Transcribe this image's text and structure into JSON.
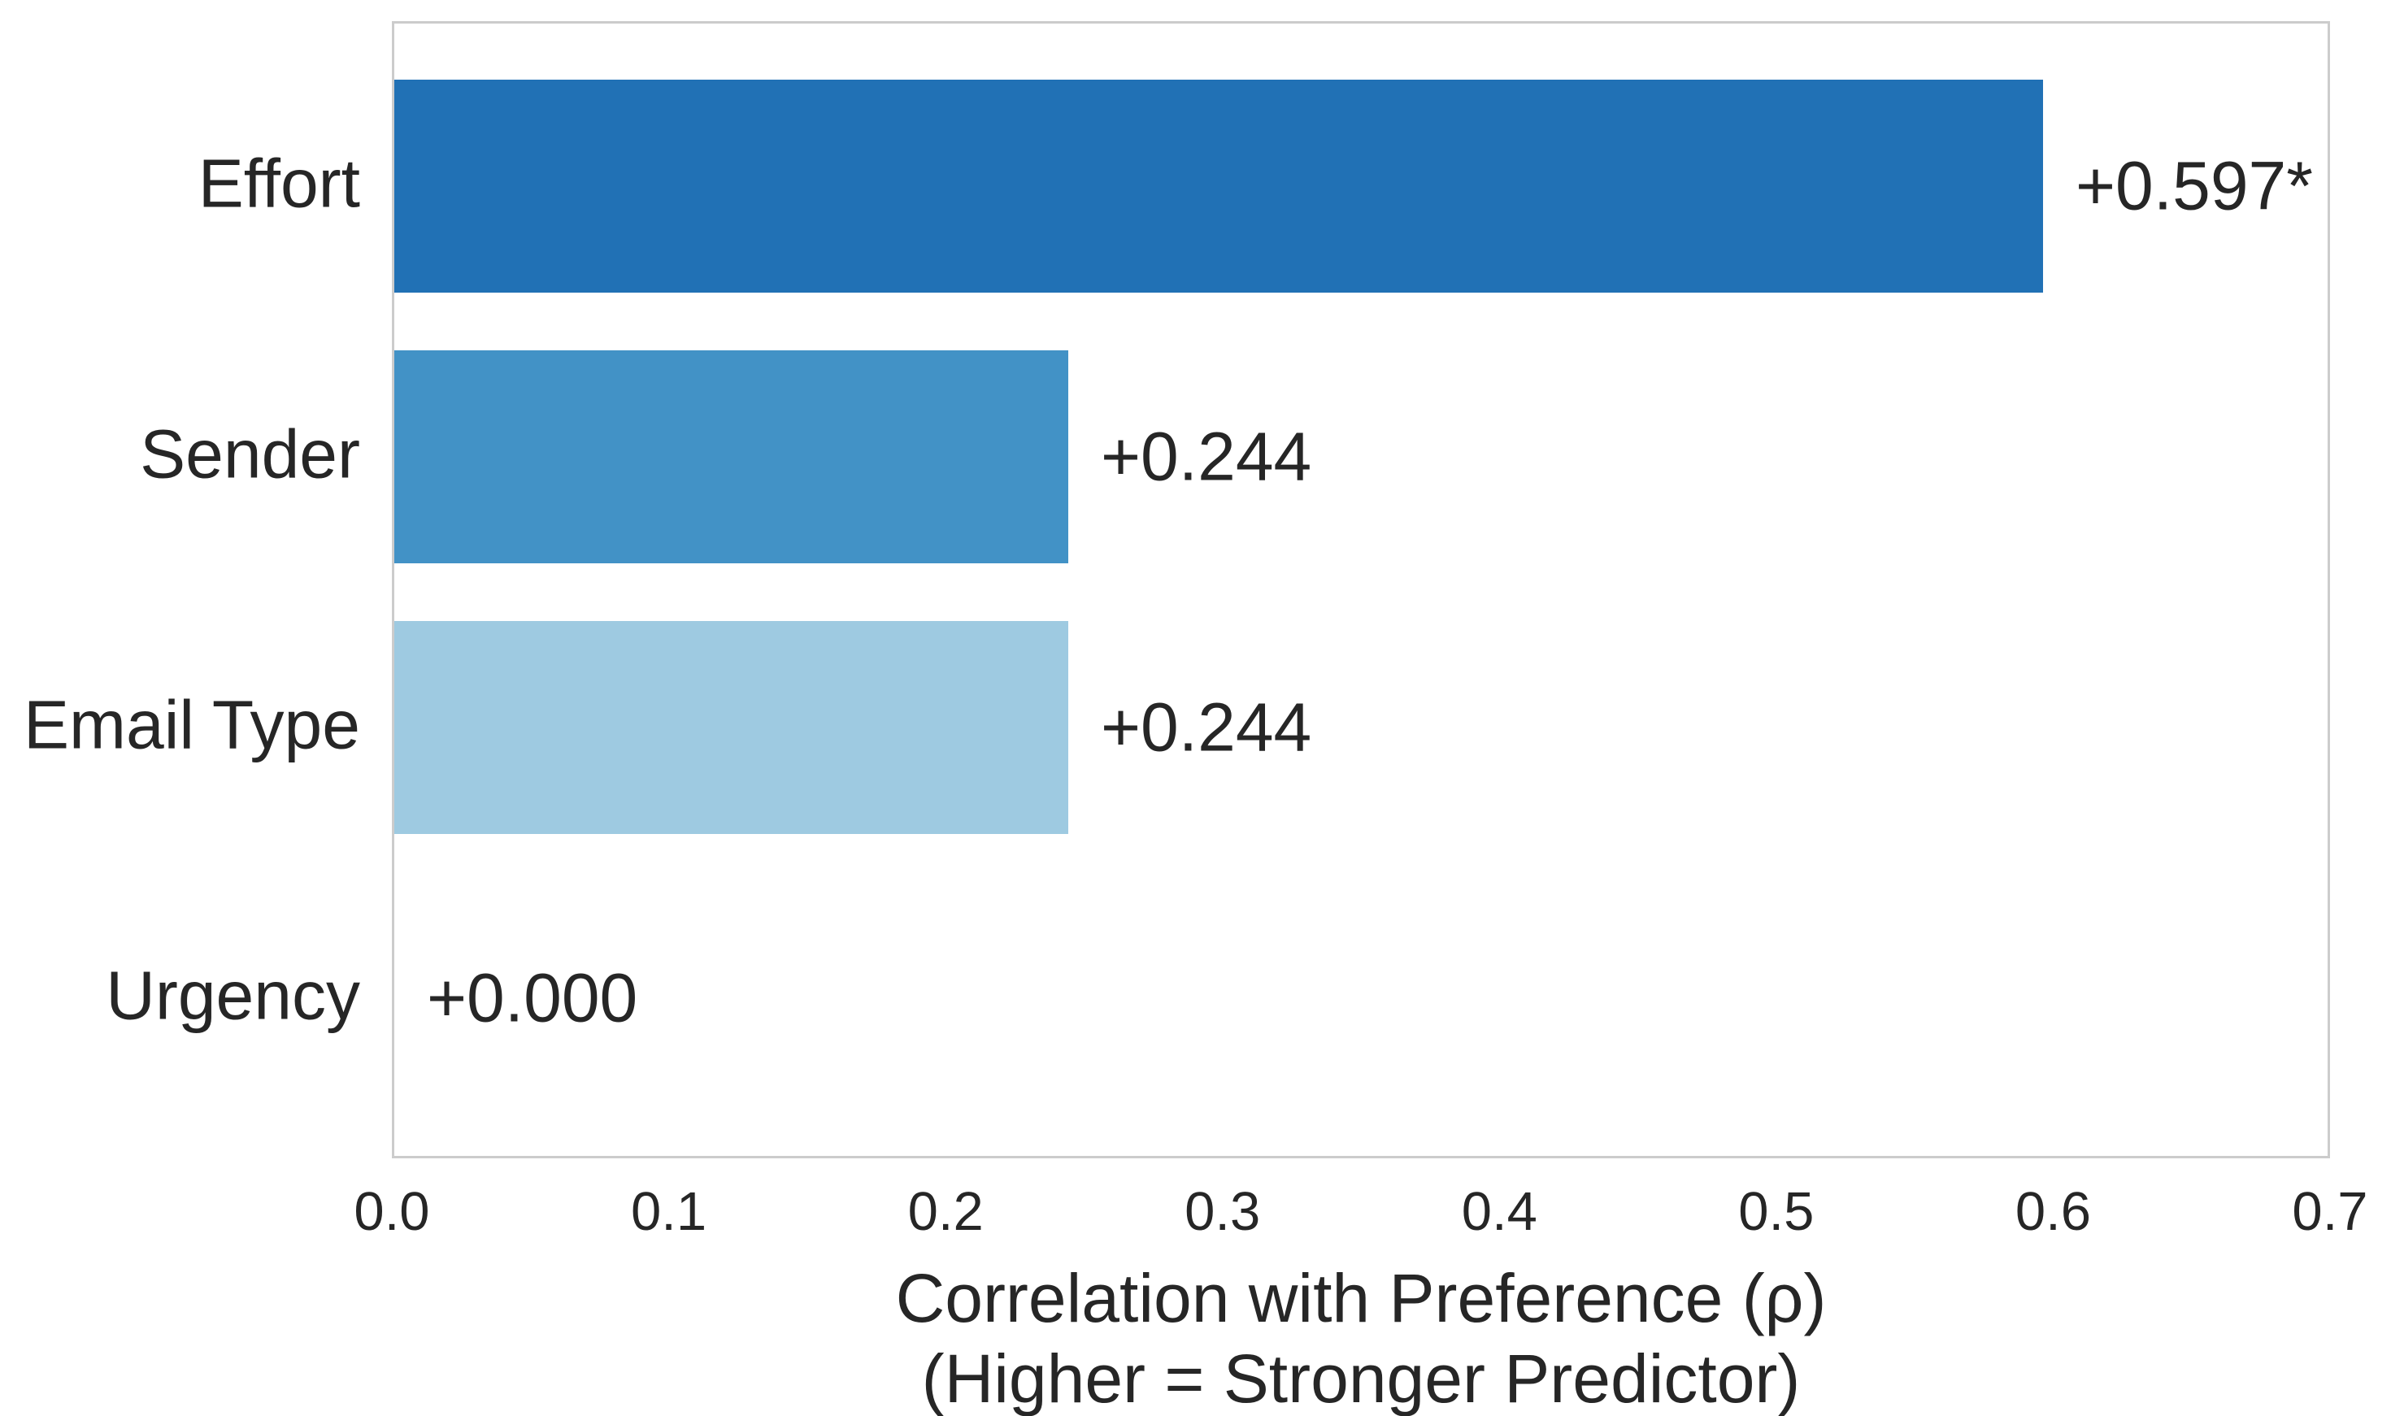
{
  "chart_data": {
    "type": "bar",
    "orientation": "horizontal",
    "title": "",
    "categories": [
      "Effort",
      "Sender",
      "Email Type",
      "Urgency"
    ],
    "values": [
      0.597,
      0.244,
      0.244,
      0.0
    ],
    "value_labels": [
      "+0.597*",
      "+0.244",
      "+0.244",
      "+0.000"
    ],
    "bar_colors": [
      "#2171b5",
      "#4292c6",
      "#9ecae1",
      "none"
    ],
    "xlabel_line1": "Correlation with Preference (ρ)",
    "xlabel_line2": "(Higher = Stronger Predictor)",
    "xlim": [
      0.0,
      0.7
    ],
    "x_ticks": [
      "0.0",
      "0.1",
      "0.2",
      "0.3",
      "0.4",
      "0.5",
      "0.6",
      "0.7"
    ],
    "grid": false,
    "legend": null
  },
  "style": {
    "text_color": "#262626",
    "border_color": "#cccccc",
    "background_color": "#ffffff"
  }
}
